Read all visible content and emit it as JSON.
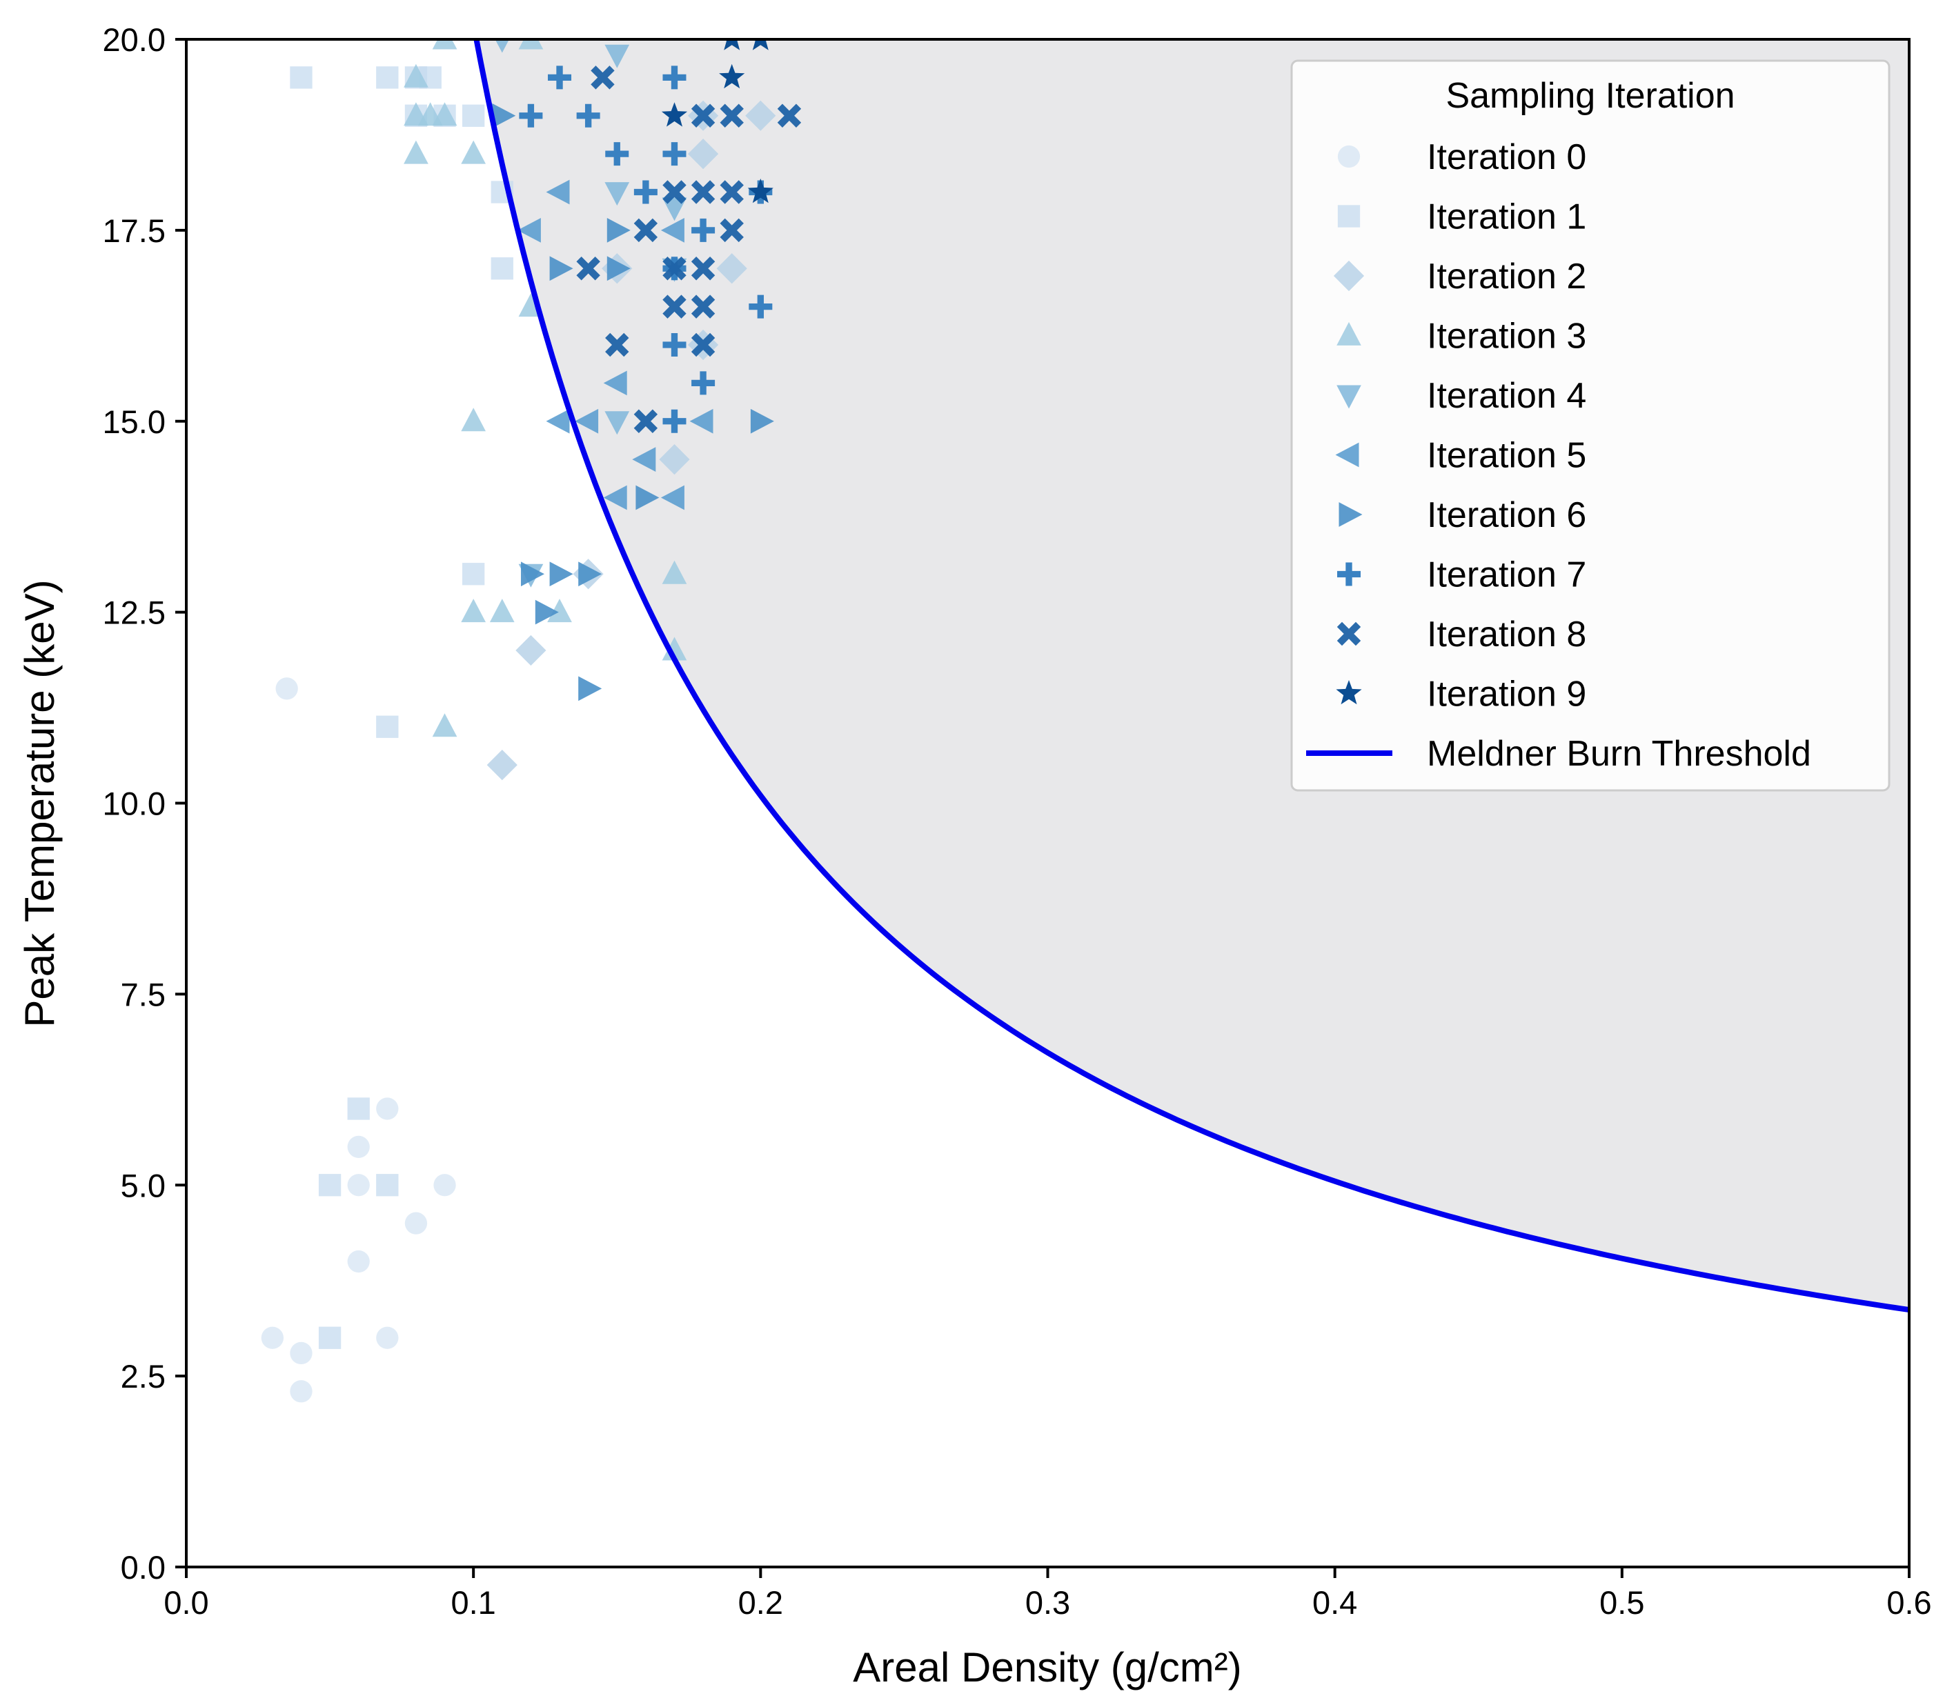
{
  "chart_data": {
    "type": "scatter",
    "title": "",
    "xlabel": "Areal Density (g/cm²)",
    "ylabel": "Peak Temperature (keV)",
    "xlim": [
      0,
      0.6
    ],
    "ylim": [
      0,
      20
    ],
    "grid": false,
    "x_ticks": [
      "0.0",
      "0.1",
      "0.2",
      "0.3",
      "0.4",
      "0.5",
      "0.6"
    ],
    "y_ticks": [
      "0.0",
      "2.5",
      "5.0",
      "7.5",
      "10.0",
      "12.5",
      "15.0",
      "17.5",
      "20.0"
    ],
    "legend": {
      "title": "Sampling Iteration",
      "position": "top-right",
      "entries": [
        "Iteration 0",
        "Iteration 1",
        "Iteration 2",
        "Iteration 3",
        "Iteration 4",
        "Iteration 5",
        "Iteration 6",
        "Iteration 7",
        "Iteration 8",
        "Iteration 9",
        "Meldner Burn Threshold"
      ]
    },
    "threshold_curve": {
      "name": "Meldner Burn Threshold",
      "color": "#0000ee",
      "formula": "T = 2.02 / x",
      "shaded_region": "above curve",
      "shade_color": "#e8e8ea"
    },
    "series": [
      {
        "name": "Iteration 0",
        "marker": "circle",
        "color": "#c6dbef",
        "opacity": 0.55,
        "points": [
          [
            0.035,
            11.5
          ],
          [
            0.03,
            3.0
          ],
          [
            0.04,
            2.8
          ],
          [
            0.04,
            2.3
          ],
          [
            0.06,
            4.0
          ],
          [
            0.06,
            5.0
          ],
          [
            0.06,
            5.5
          ],
          [
            0.07,
            6.0
          ],
          [
            0.07,
            3.0
          ],
          [
            0.08,
            4.5
          ],
          [
            0.09,
            5.0
          ]
        ]
      },
      {
        "name": "Iteration 1",
        "marker": "square",
        "color": "#c6dbef",
        "opacity": 0.75,
        "points": [
          [
            0.04,
            19.5
          ],
          [
            0.07,
            19.5
          ],
          [
            0.08,
            19.5
          ],
          [
            0.085,
            19.5
          ],
          [
            0.08,
            19.0
          ],
          [
            0.09,
            19.0
          ],
          [
            0.1,
            19.0
          ],
          [
            0.11,
            18.0
          ],
          [
            0.11,
            17.0
          ],
          [
            0.1,
            13.0
          ],
          [
            0.07,
            11.0
          ],
          [
            0.06,
            6.0
          ],
          [
            0.05,
            5.0
          ],
          [
            0.07,
            5.0
          ],
          [
            0.05,
            3.0
          ]
        ]
      },
      {
        "name": "Iteration 2",
        "marker": "diamond",
        "color": "#b4cfe6",
        "opacity": 0.8,
        "points": [
          [
            0.18,
            18.5
          ],
          [
            0.18,
            19.0
          ],
          [
            0.2,
            19.0
          ],
          [
            0.15,
            17.0
          ],
          [
            0.19,
            17.0
          ],
          [
            0.18,
            16.0
          ],
          [
            0.17,
            14.5
          ],
          [
            0.14,
            13.0
          ],
          [
            0.12,
            12.0
          ],
          [
            0.11,
            10.5
          ]
        ]
      },
      {
        "name": "Iteration 3",
        "marker": "triangle-up",
        "color": "#9ecae1",
        "opacity": 0.85,
        "points": [
          [
            0.09,
            20.0
          ],
          [
            0.12,
            20.0
          ],
          [
            0.08,
            19.5
          ],
          [
            0.08,
            19.0
          ],
          [
            0.085,
            19.0
          ],
          [
            0.09,
            19.0
          ],
          [
            0.08,
            18.5
          ],
          [
            0.1,
            18.5
          ],
          [
            0.12,
            16.5
          ],
          [
            0.1,
            15.0
          ],
          [
            0.17,
            13.0
          ],
          [
            0.1,
            12.5
          ],
          [
            0.11,
            12.5
          ],
          [
            0.13,
            12.5
          ],
          [
            0.17,
            12.0
          ],
          [
            0.09,
            11.0
          ]
        ]
      },
      {
        "name": "Iteration 4",
        "marker": "triangle-down",
        "color": "#7fb6db",
        "opacity": 0.85,
        "points": [
          [
            0.11,
            20.0
          ],
          [
            0.15,
            19.8
          ],
          [
            0.15,
            18.0
          ],
          [
            0.17,
            17.8
          ],
          [
            0.17,
            17.0
          ],
          [
            0.15,
            15.0
          ],
          [
            0.12,
            13.0
          ]
        ]
      },
      {
        "name": "Iteration 5",
        "marker": "triangle-left",
        "color": "#5d9fd0",
        "opacity": 0.9,
        "points": [
          [
            0.13,
            18.0
          ],
          [
            0.12,
            17.5
          ],
          [
            0.17,
            17.5
          ],
          [
            0.15,
            15.5
          ],
          [
            0.13,
            15.0
          ],
          [
            0.14,
            15.0
          ],
          [
            0.18,
            15.0
          ],
          [
            0.16,
            14.5
          ],
          [
            0.15,
            14.0
          ],
          [
            0.17,
            14.0
          ]
        ]
      },
      {
        "name": "Iteration 6",
        "marker": "triangle-right",
        "color": "#4a90c8",
        "opacity": 0.9,
        "points": [
          [
            0.11,
            19.0
          ],
          [
            0.15,
            17.5
          ],
          [
            0.13,
            17.0
          ],
          [
            0.15,
            17.0
          ],
          [
            0.2,
            15.0
          ],
          [
            0.16,
            14.0
          ],
          [
            0.12,
            13.0
          ],
          [
            0.13,
            13.0
          ],
          [
            0.14,
            13.0
          ],
          [
            0.125,
            12.5
          ],
          [
            0.14,
            11.5
          ]
        ]
      },
      {
        "name": "Iteration 7",
        "marker": "plus",
        "color": "#2f7bbf",
        "opacity": 0.95,
        "points": [
          [
            0.13,
            19.5
          ],
          [
            0.17,
            19.5
          ],
          [
            0.12,
            19.0
          ],
          [
            0.14,
            19.0
          ],
          [
            0.15,
            18.5
          ],
          [
            0.17,
            18.5
          ],
          [
            0.16,
            18.0
          ],
          [
            0.2,
            18.0
          ],
          [
            0.18,
            17.5
          ],
          [
            0.17,
            17.0
          ],
          [
            0.2,
            16.5
          ],
          [
            0.17,
            16.0
          ],
          [
            0.18,
            15.5
          ],
          [
            0.17,
            15.0
          ]
        ]
      },
      {
        "name": "Iteration 8",
        "marker": "x",
        "color": "#1f63a8",
        "opacity": 0.95,
        "points": [
          [
            0.145,
            19.5
          ],
          [
            0.18,
            19.0
          ],
          [
            0.19,
            19.0
          ],
          [
            0.21,
            19.0
          ],
          [
            0.17,
            18.0
          ],
          [
            0.18,
            18.0
          ],
          [
            0.19,
            18.0
          ],
          [
            0.16,
            17.5
          ],
          [
            0.19,
            17.5
          ],
          [
            0.14,
            17.0
          ],
          [
            0.17,
            17.0
          ],
          [
            0.18,
            17.0
          ],
          [
            0.17,
            16.5
          ],
          [
            0.18,
            16.5
          ],
          [
            0.15,
            16.0
          ],
          [
            0.18,
            16.0
          ],
          [
            0.16,
            15.0
          ]
        ]
      },
      {
        "name": "Iteration 9",
        "marker": "star",
        "color": "#0b4d92",
        "opacity": 1.0,
        "points": [
          [
            0.19,
            20.0
          ],
          [
            0.2,
            20.0
          ],
          [
            0.19,
            19.5
          ],
          [
            0.17,
            19.0
          ],
          [
            0.2,
            18.0
          ]
        ]
      }
    ]
  }
}
